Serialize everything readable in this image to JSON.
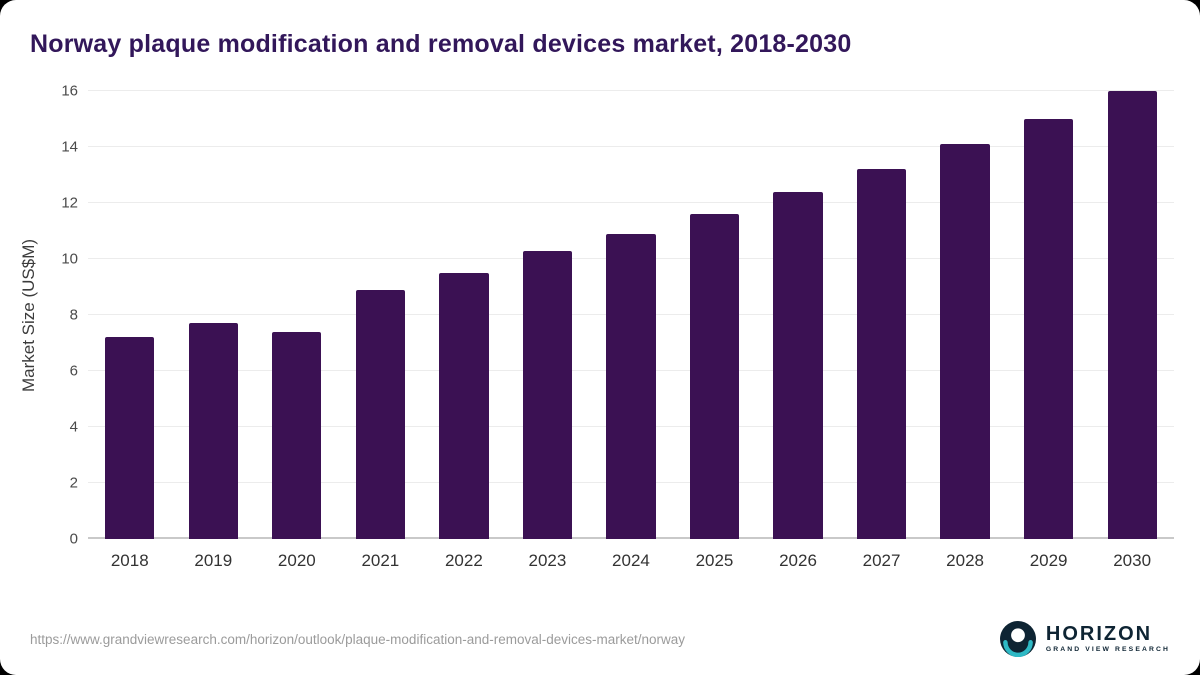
{
  "chart_data": {
    "type": "bar",
    "title": "Norway plaque modification and removal devices market, 2018-2030",
    "xlabel": "",
    "ylabel": "Market Size (US$M)",
    "categories": [
      "2018",
      "2019",
      "2020",
      "2021",
      "2022",
      "2023",
      "2024",
      "2025",
      "2026",
      "2027",
      "2028",
      "2029",
      "2030"
    ],
    "values": [
      7.2,
      7.7,
      7.4,
      8.9,
      9.5,
      10.3,
      10.9,
      11.6,
      12.4,
      13.2,
      14.1,
      15.0,
      16.0
    ],
    "ylim": [
      0,
      16
    ],
    "yticks": [
      0,
      2,
      4,
      6,
      8,
      10,
      12,
      14,
      16
    ],
    "grid": "horizontal",
    "legend": "none",
    "bar_color": "#3b1153"
  },
  "footer": {
    "source_url": "https://www.grandviewresearch.com/horizon/outlook/plaque-modification-and-removal-devices-market/norway",
    "logo": {
      "name": "HORIZON",
      "subtitle": "GRAND VIEW RESEARCH"
    }
  },
  "colors": {
    "title": "#32175a",
    "bar": "#3b1153",
    "logo_navy": "#0e2433",
    "logo_teal": "#2eb9c5"
  }
}
